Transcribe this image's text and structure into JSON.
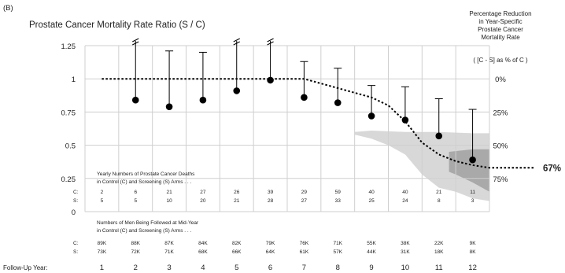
{
  "panel_label": "(B)",
  "right_header": {
    "lines": [
      "Percentage Reduction",
      "in Year-Specific",
      "Prostate Cancer",
      "Mortality Rate"
    ],
    "formula": "( [C - S] as % of C )",
    "end_label": "67%"
  },
  "yearly_deaths": {
    "caption_1": "Yearly Numbers of Prostate Cancer Deaths",
    "caption_2": "in Control (C) and Screening (S) Arms . . .",
    "row_c_label": "C:",
    "row_s_label": "S:",
    "c": [
      "2",
      "6",
      "21",
      "27",
      "26",
      "39",
      "29",
      "59",
      "40",
      "40",
      "21",
      "11"
    ],
    "s": [
      "5",
      "5",
      "10",
      "20",
      "21",
      "28",
      "27",
      "33",
      "25",
      "24",
      "8",
      "3"
    ]
  },
  "men_followed": {
    "caption_1": "Numbers of Men Being Followed at Mid-Year",
    "caption_2": "in Control (C) and Screening (S) Arms . . .",
    "row_c_label": "C:",
    "row_s_label": "S:",
    "c": [
      "89K",
      "88K",
      "87K",
      "84K",
      "82K",
      "79K",
      "76K",
      "71K",
      "55K",
      "38K",
      "22K",
      "9K"
    ],
    "s": [
      "73K",
      "72K",
      "71K",
      "68K",
      "66K",
      "64K",
      "61K",
      "57K",
      "44K",
      "31K",
      "18K",
      "8K"
    ]
  },
  "chart_data": {
    "type": "scatter",
    "title": "Prostate Cancer Mortality Rate Ratio (S / C)",
    "xlabel": "Follow-Up Year:",
    "x": [
      1,
      2,
      3,
      4,
      5,
      6,
      7,
      8,
      9,
      10,
      11,
      12
    ],
    "ylim": [
      0,
      1.25
    ],
    "yticks": [
      "0",
      "0.25",
      "0.5",
      "0.75",
      "1",
      "1.25"
    ],
    "right_ticks": [
      {
        "value": 1,
        "label": "0%"
      },
      {
        "value": 0.75,
        "label": "25%"
      },
      {
        "value": 0.5,
        "label": "50%"
      },
      {
        "value": 0.25,
        "label": "75%"
      }
    ],
    "point_estimates": [
      {
        "x": 2,
        "y": 0.84
      },
      {
        "x": 3,
        "y": 0.79
      },
      {
        "x": 4,
        "y": 0.84
      },
      {
        "x": 5,
        "y": 0.91
      },
      {
        "x": 6,
        "y": 0.99
      },
      {
        "x": 7,
        "y": 0.86
      },
      {
        "x": 8,
        "y": 0.82
      },
      {
        "x": 9,
        "y": 0.72
      },
      {
        "x": 10,
        "y": 0.69
      },
      {
        "x": 11,
        "y": 0.57
      },
      {
        "x": 12,
        "y": 0.39
      }
    ],
    "upper_bounds": [
      {
        "x": 2,
        "y": 1.25,
        "truncated": true
      },
      {
        "x": 3,
        "y": 1.21,
        "truncated": false
      },
      {
        "x": 4,
        "y": 1.2,
        "truncated": false
      },
      {
        "x": 5,
        "y": 1.25,
        "truncated": true
      },
      {
        "x": 6,
        "y": 1.25,
        "truncated": true
      },
      {
        "x": 7,
        "y": 1.13,
        "truncated": false
      },
      {
        "x": 8,
        "y": 1.08,
        "truncated": false
      },
      {
        "x": 9,
        "y": 0.95,
        "truncated": false
      },
      {
        "x": 10,
        "y": 0.94,
        "truncated": false
      },
      {
        "x": 11,
        "y": 0.85,
        "truncated": false
      },
      {
        "x": 12,
        "y": 0.77,
        "truncated": false
      }
    ],
    "fitted_curve": [
      {
        "x": 1,
        "y": 1
      },
      {
        "x": 7,
        "y": 1
      },
      {
        "x": 8,
        "y": 0.93
      },
      {
        "x": 9,
        "y": 0.86
      },
      {
        "x": 9.5,
        "y": 0.8
      },
      {
        "x": 10,
        "y": 0.68
      },
      {
        "x": 10.5,
        "y": 0.52
      },
      {
        "x": 11,
        "y": 0.43
      },
      {
        "x": 11.5,
        "y": 0.38
      },
      {
        "x": 12,
        "y": 0.35
      },
      {
        "x": 12.5,
        "y": 0.33
      }
    ],
    "band_outer_upper": [
      {
        "x": 8.5,
        "y": 0.6
      },
      {
        "x": 9,
        "y": 0.61
      },
      {
        "x": 10,
        "y": 0.6
      },
      {
        "x": 11,
        "y": 0.6
      },
      {
        "x": 12,
        "y": 0.59
      },
      {
        "x": 12.5,
        "y": 0.59
      }
    ],
    "band_outer_lower": [
      {
        "x": 12.5,
        "y": 0.08
      },
      {
        "x": 12,
        "y": 0.1
      },
      {
        "x": 11.5,
        "y": 0.15
      },
      {
        "x": 11,
        "y": 0.18
      },
      {
        "x": 10.5,
        "y": 0.28
      },
      {
        "x": 10,
        "y": 0.43
      },
      {
        "x": 9.5,
        "y": 0.5
      },
      {
        "x": 9,
        "y": 0.55
      },
      {
        "x": 8.5,
        "y": 0.58
      }
    ],
    "band_inner_upper": [
      {
        "x": 11.3,
        "y": 0.45
      },
      {
        "x": 12,
        "y": 0.47
      },
      {
        "x": 12.5,
        "y": 0.47
      }
    ],
    "band_inner_lower": [
      {
        "x": 12.5,
        "y": 0.15
      },
      {
        "x": 12,
        "y": 0.22
      },
      {
        "x": 11.5,
        "y": 0.28
      },
      {
        "x": 11.3,
        "y": 0.3
      }
    ],
    "grid": true,
    "colors": {
      "points": "#000000",
      "curve": "#000000",
      "band_outer": "#d8d8d8",
      "band_inner": "#a9a9a9",
      "grid": "#cfcfcf"
    }
  }
}
